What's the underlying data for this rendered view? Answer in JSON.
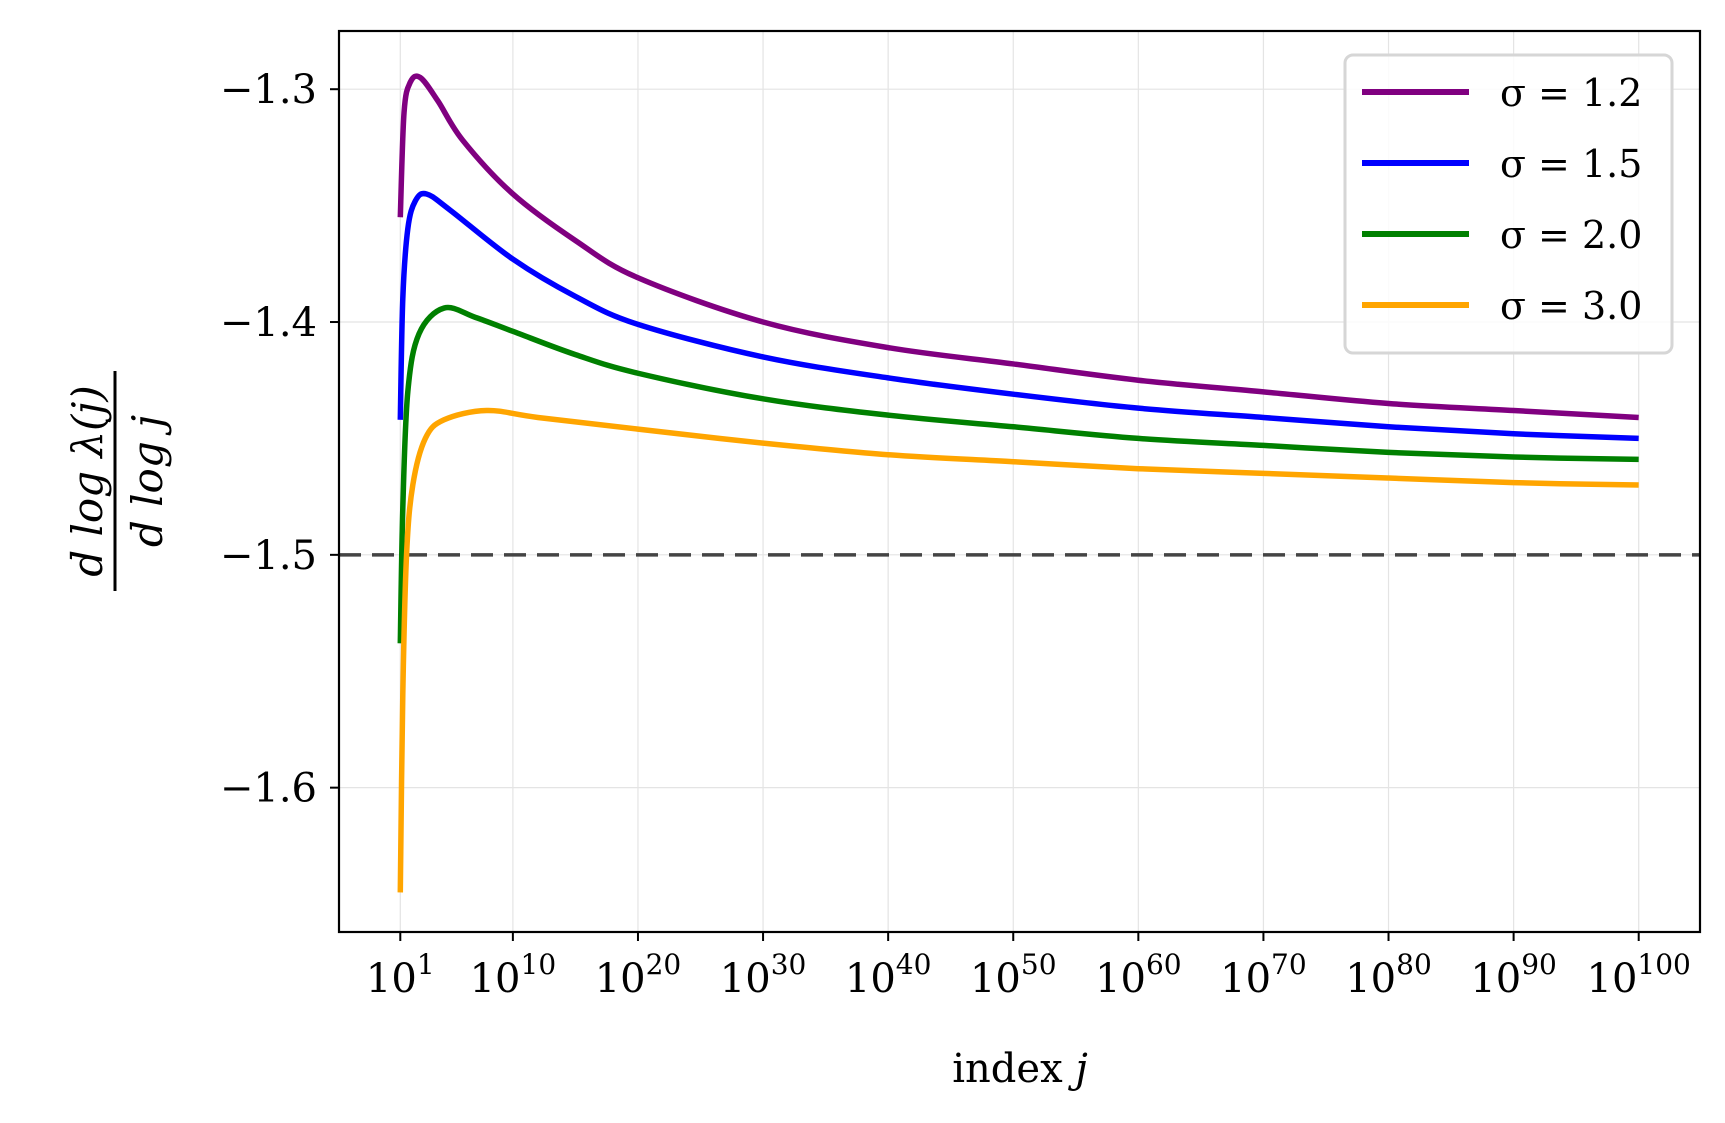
{
  "chart_data": {
    "type": "line",
    "title": "",
    "xlabel": "index j",
    "ylabel": "d log λ(j) / d log j",
    "ylabel_numerator": "d log λ(j)",
    "ylabel_denominator": "d log j",
    "x_scale": "log",
    "x_units": "log10(j)",
    "xlim_log10": [
      -3.9,
      104.9
    ],
    "ylim": [
      -1.662,
      -1.275
    ],
    "x_ticks": [
      {
        "exp": 1,
        "label_base": "10",
        "label_exp": "1"
      },
      {
        "exp": 10,
        "label_base": "10",
        "label_exp": "10"
      },
      {
        "exp": 20,
        "label_base": "10",
        "label_exp": "20"
      },
      {
        "exp": 30,
        "label_base": "10",
        "label_exp": "30"
      },
      {
        "exp": 40,
        "label_base": "10",
        "label_exp": "40"
      },
      {
        "exp": 50,
        "label_base": "10",
        "label_exp": "50"
      },
      {
        "exp": 60,
        "label_base": "10",
        "label_exp": "60"
      },
      {
        "exp": 70,
        "label_base": "10",
        "label_exp": "70"
      },
      {
        "exp": 80,
        "label_base": "10",
        "label_exp": "80"
      },
      {
        "exp": 90,
        "label_base": "10",
        "label_exp": "90"
      },
      {
        "exp": 100,
        "label_base": "10",
        "label_exp": "100"
      }
    ],
    "y_ticks": [
      {
        "value": -1.3,
        "label": "−1.3"
      },
      {
        "value": -1.4,
        "label": "−1.4"
      },
      {
        "value": -1.5,
        "label": "−1.5"
      },
      {
        "value": -1.6,
        "label": "−1.6"
      }
    ],
    "grid": true,
    "legend_placement": "top-right",
    "reference_line": {
      "y": -1.5,
      "style": "dashed",
      "color": "#444444"
    },
    "series": [
      {
        "name": "σ = 1.2",
        "color": "#800080",
        "log10_x": [
          1,
          1.3,
          1.8,
          2.6,
          4,
          6,
          10,
          15,
          20,
          30,
          40,
          50,
          60,
          70,
          80,
          90,
          100
        ],
        "y": [
          -1.355,
          -1.31,
          -1.297,
          -1.295,
          -1.305,
          -1.322,
          -1.345,
          -1.365,
          -1.381,
          -1.4,
          -1.411,
          -1.418,
          -1.425,
          -1.43,
          -1.435,
          -1.438,
          -1.441
        ]
      },
      {
        "name": "σ = 1.5",
        "color": "#0000ff",
        "log10_x": [
          1,
          1.2,
          1.6,
          2.2,
          3.1,
          5,
          10,
          15,
          20,
          30,
          40,
          50,
          60,
          70,
          80,
          90,
          100
        ],
        "y": [
          -1.442,
          -1.39,
          -1.36,
          -1.348,
          -1.345,
          -1.352,
          -1.373,
          -1.389,
          -1.401,
          -1.415,
          -1.424,
          -1.431,
          -1.437,
          -1.441,
          -1.445,
          -1.448,
          -1.45
        ]
      },
      {
        "name": "σ = 2.0",
        "color": "#008000",
        "log10_x": [
          1,
          1.2,
          1.6,
          2.5,
          4.5,
          7,
          10,
          15,
          20,
          30,
          40,
          50,
          60,
          70,
          80,
          90,
          100
        ],
        "y": [
          -1.538,
          -1.48,
          -1.43,
          -1.405,
          -1.394,
          -1.398,
          -1.404,
          -1.414,
          -1.422,
          -1.433,
          -1.44,
          -1.445,
          -1.45,
          -1.453,
          -1.456,
          -1.458,
          -1.459
        ]
      },
      {
        "name": "σ = 3.0",
        "color": "#ffa500",
        "log10_x": [
          1,
          1.2,
          1.5,
          2,
          3,
          4.5,
          7.9,
          12,
          20,
          30,
          40,
          50,
          60,
          70,
          80,
          90,
          100
        ],
        "y": [
          -1.645,
          -1.56,
          -1.5,
          -1.47,
          -1.45,
          -1.442,
          -1.438,
          -1.441,
          -1.446,
          -1.452,
          -1.457,
          -1.46,
          -1.463,
          -1.465,
          -1.467,
          -1.469,
          -1.47
        ]
      }
    ]
  }
}
